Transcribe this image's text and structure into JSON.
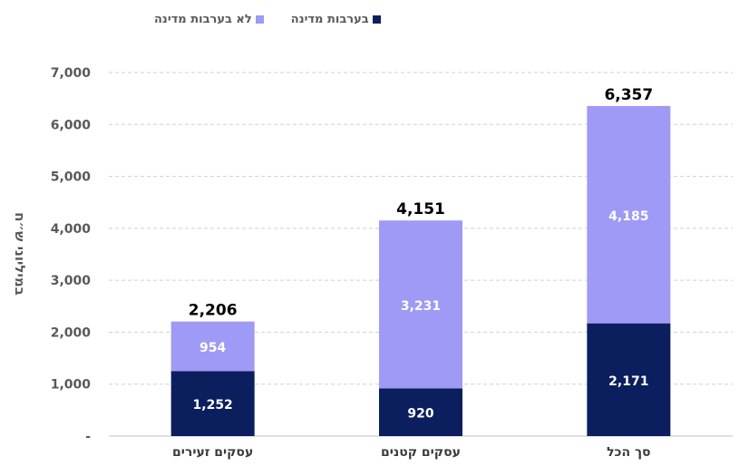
{
  "chart_data": {
    "type": "bar",
    "stacked": true,
    "categories": [
      "עסקים זעירים",
      "עסקים קטנים",
      "סך הכל"
    ],
    "series": [
      {
        "name": "בערבות מדינה",
        "color": "#0b1f5e",
        "values": [
          1252,
          920,
          2171
        ],
        "labels": [
          "1,252",
          "920",
          "2,171"
        ]
      },
      {
        "name": "לא בערבות מדינה",
        "color": "#9e9af5",
        "values": [
          954,
          3231,
          4185
        ],
        "labels": [
          "954",
          "3,231",
          "4,185"
        ]
      }
    ],
    "totals": [
      "2,206",
      "4,151",
      "6,357"
    ],
    "ylabel": "במיליוני ש״ח",
    "ylim": [
      0,
      7000
    ],
    "yticks": [
      "-",
      "1,000",
      "2,000",
      "3,000",
      "4,000",
      "5,000",
      "6,000",
      "7,000"
    ],
    "grid": true,
    "legend_position": "top"
  }
}
